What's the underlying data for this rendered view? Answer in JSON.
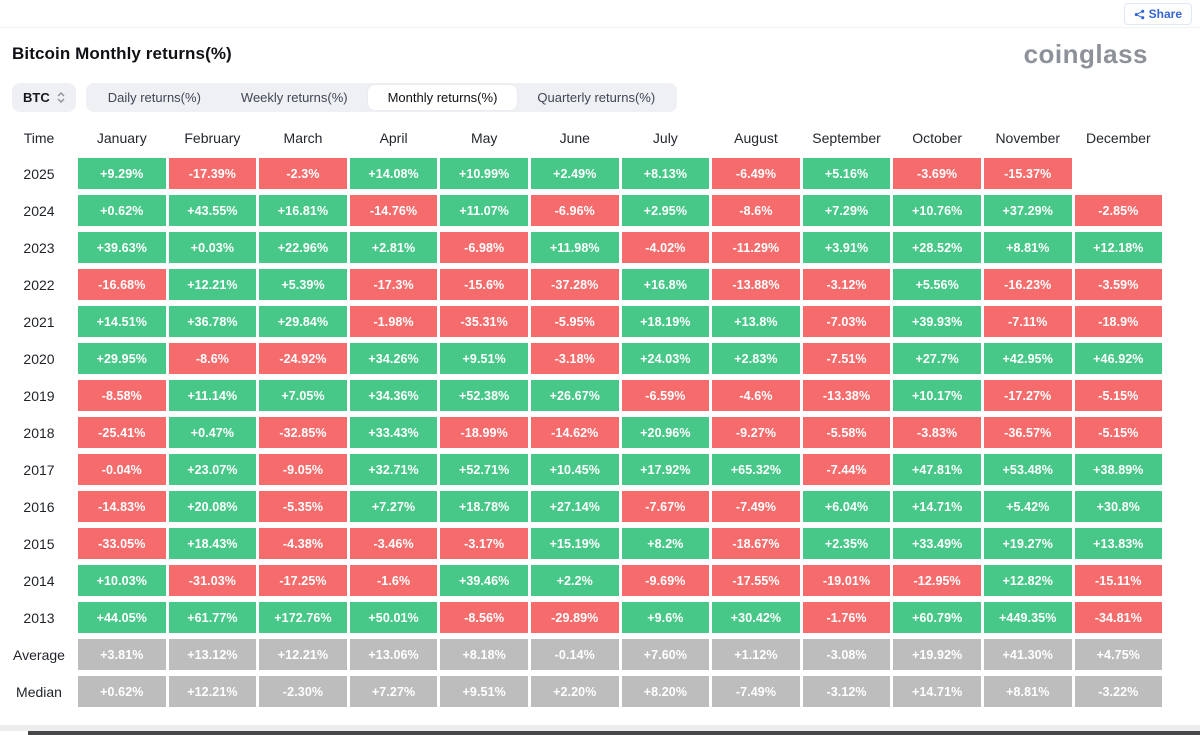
{
  "header": {
    "title": "Bitcoin Monthly returns(%)",
    "share_label": "Share",
    "logo": "coinglass"
  },
  "toolbar": {
    "coin": "BTC",
    "tabs": [
      {
        "label": "Daily returns(%)",
        "active": false
      },
      {
        "label": "Weekly returns(%)",
        "active": false
      },
      {
        "label": "Monthly returns(%)",
        "active": true
      },
      {
        "label": "Quarterly returns(%)",
        "active": false
      }
    ]
  },
  "colors": {
    "positive": "#48c888",
    "negative": "#f66c6c",
    "neutral": "#bdbdbd"
  },
  "table": {
    "columns": [
      "Time",
      "January",
      "February",
      "March",
      "April",
      "May",
      "June",
      "July",
      "August",
      "September",
      "October",
      "November",
      "December"
    ],
    "rows": [
      {
        "label": "2025",
        "type": "year",
        "values": [
          "+9.29%",
          "-17.39%",
          "-2.3%",
          "+14.08%",
          "+10.99%",
          "+2.49%",
          "+8.13%",
          "-6.49%",
          "+5.16%",
          "-3.69%",
          "-15.37%",
          ""
        ]
      },
      {
        "label": "2024",
        "type": "year",
        "values": [
          "+0.62%",
          "+43.55%",
          "+16.81%",
          "-14.76%",
          "+11.07%",
          "-6.96%",
          "+2.95%",
          "-8.6%",
          "+7.29%",
          "+10.76%",
          "+37.29%",
          "-2.85%"
        ]
      },
      {
        "label": "2023",
        "type": "year",
        "values": [
          "+39.63%",
          "+0.03%",
          "+22.96%",
          "+2.81%",
          "-6.98%",
          "+11.98%",
          "-4.02%",
          "-11.29%",
          "+3.91%",
          "+28.52%",
          "+8.81%",
          "+12.18%"
        ]
      },
      {
        "label": "2022",
        "type": "year",
        "values": [
          "-16.68%",
          "+12.21%",
          "+5.39%",
          "-17.3%",
          "-15.6%",
          "-37.28%",
          "+16.8%",
          "-13.88%",
          "-3.12%",
          "+5.56%",
          "-16.23%",
          "-3.59%"
        ]
      },
      {
        "label": "2021",
        "type": "year",
        "values": [
          "+14.51%",
          "+36.78%",
          "+29.84%",
          "-1.98%",
          "-35.31%",
          "-5.95%",
          "+18.19%",
          "+13.8%",
          "-7.03%",
          "+39.93%",
          "-7.11%",
          "-18.9%"
        ]
      },
      {
        "label": "2020",
        "type": "year",
        "values": [
          "+29.95%",
          "-8.6%",
          "-24.92%",
          "+34.26%",
          "+9.51%",
          "-3.18%",
          "+24.03%",
          "+2.83%",
          "-7.51%",
          "+27.7%",
          "+42.95%",
          "+46.92%"
        ]
      },
      {
        "label": "2019",
        "type": "year",
        "values": [
          "-8.58%",
          "+11.14%",
          "+7.05%",
          "+34.36%",
          "+52.38%",
          "+26.67%",
          "-6.59%",
          "-4.6%",
          "-13.38%",
          "+10.17%",
          "-17.27%",
          "-5.15%"
        ]
      },
      {
        "label": "2018",
        "type": "year",
        "values": [
          "-25.41%",
          "+0.47%",
          "-32.85%",
          "+33.43%",
          "-18.99%",
          "-14.62%",
          "+20.96%",
          "-9.27%",
          "-5.58%",
          "-3.83%",
          "-36.57%",
          "-5.15%"
        ]
      },
      {
        "label": "2017",
        "type": "year",
        "values": [
          "-0.04%",
          "+23.07%",
          "-9.05%",
          "+32.71%",
          "+52.71%",
          "+10.45%",
          "+17.92%",
          "+65.32%",
          "-7.44%",
          "+47.81%",
          "+53.48%",
          "+38.89%"
        ]
      },
      {
        "label": "2016",
        "type": "year",
        "values": [
          "-14.83%",
          "+20.08%",
          "-5.35%",
          "+7.27%",
          "+18.78%",
          "+27.14%",
          "-7.67%",
          "-7.49%",
          "+6.04%",
          "+14.71%",
          "+5.42%",
          "+30.8%"
        ]
      },
      {
        "label": "2015",
        "type": "year",
        "values": [
          "-33.05%",
          "+18.43%",
          "-4.38%",
          "-3.46%",
          "-3.17%",
          "+15.19%",
          "+8.2%",
          "-18.67%",
          "+2.35%",
          "+33.49%",
          "+19.27%",
          "+13.83%"
        ]
      },
      {
        "label": "2014",
        "type": "year",
        "values": [
          "+10.03%",
          "-31.03%",
          "-17.25%",
          "-1.6%",
          "+39.46%",
          "+2.2%",
          "-9.69%",
          "-17.55%",
          "-19.01%",
          "-12.95%",
          "+12.82%",
          "-15.11%"
        ]
      },
      {
        "label": "2013",
        "type": "year",
        "values": [
          "+44.05%",
          "+61.77%",
          "+172.76%",
          "+50.01%",
          "-8.56%",
          "-29.89%",
          "+9.6%",
          "+30.42%",
          "-1.76%",
          "+60.79%",
          "+449.35%",
          "-34.81%"
        ]
      },
      {
        "label": "Average",
        "type": "summary",
        "values": [
          "+3.81%",
          "+13.12%",
          "+12.21%",
          "+13.06%",
          "+8.18%",
          "-0.14%",
          "+7.60%",
          "+1.12%",
          "-3.08%",
          "+19.92%",
          "+41.30%",
          "+4.75%"
        ]
      },
      {
        "label": "Median",
        "type": "summary",
        "values": [
          "+0.62%",
          "+12.21%",
          "-2.30%",
          "+7.27%",
          "+9.51%",
          "+2.20%",
          "+8.20%",
          "-7.49%",
          "-3.12%",
          "+14.71%",
          "+8.81%",
          "-3.22%"
        ]
      }
    ]
  }
}
